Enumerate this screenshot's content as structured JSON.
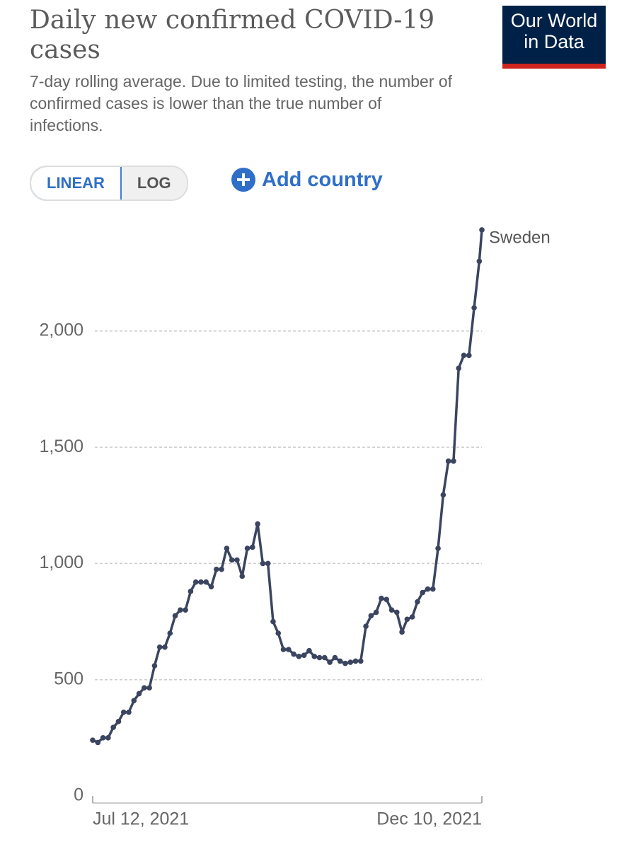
{
  "header": {
    "title": "Daily new confirmed COVID-19 cases",
    "subtitle": "7-day rolling average. Due to limited testing, the number of confirmed cases is lower than the true number of infections.",
    "logo_lines": [
      "Our World",
      "in Data"
    ]
  },
  "controls": {
    "linear": "LINEAR",
    "log": "LOG",
    "add_country": "Add country"
  },
  "chart_data": {
    "type": "line",
    "x": [
      "2021-07-12",
      "2021-07-14",
      "2021-07-16",
      "2021-07-18",
      "2021-07-20",
      "2021-07-22",
      "2021-07-24",
      "2021-07-26",
      "2021-07-28",
      "2021-07-30",
      "2021-08-01",
      "2021-08-03",
      "2021-08-05",
      "2021-08-07",
      "2021-08-09",
      "2021-08-11",
      "2021-08-13",
      "2021-08-15",
      "2021-08-17",
      "2021-08-19",
      "2021-08-21",
      "2021-08-23",
      "2021-08-25",
      "2021-08-27",
      "2021-08-29",
      "2021-08-31",
      "2021-09-02",
      "2021-09-04",
      "2021-09-06",
      "2021-09-08",
      "2021-09-10",
      "2021-09-12",
      "2021-09-14",
      "2021-09-16",
      "2021-09-18",
      "2021-09-20",
      "2021-09-22",
      "2021-09-24",
      "2021-09-26",
      "2021-09-28",
      "2021-09-30",
      "2021-10-02",
      "2021-10-04",
      "2021-10-06",
      "2021-10-08",
      "2021-10-10",
      "2021-10-12",
      "2021-10-14",
      "2021-10-16",
      "2021-10-18",
      "2021-10-20",
      "2021-10-22",
      "2021-10-24",
      "2021-10-26",
      "2021-10-28",
      "2021-10-30",
      "2021-11-01",
      "2021-11-03",
      "2021-11-05",
      "2021-11-07",
      "2021-11-09",
      "2021-11-11",
      "2021-11-13",
      "2021-11-15",
      "2021-11-17",
      "2021-11-19",
      "2021-11-21",
      "2021-11-23",
      "2021-11-25",
      "2021-11-27",
      "2021-11-29",
      "2021-12-01",
      "2021-12-03",
      "2021-12-05",
      "2021-12-07",
      "2021-12-09",
      "2021-12-10"
    ],
    "series": [
      {
        "name": "Sweden",
        "color": "#3b4560",
        "values": [
          240,
          230,
          250,
          250,
          295,
          320,
          360,
          360,
          410,
          440,
          465,
          465,
          560,
          640,
          640,
          700,
          775,
          800,
          800,
          880,
          920,
          920,
          920,
          900,
          975,
          975,
          1065,
          1015,
          1015,
          945,
          1065,
          1070,
          1170,
          1000,
          1000,
          750,
          700,
          630,
          630,
          610,
          600,
          605,
          625,
          600,
          595,
          595,
          575,
          595,
          580,
          570,
          575,
          580,
          580,
          730,
          775,
          790,
          850,
          845,
          800,
          790,
          705,
          760,
          770,
          835,
          875,
          890,
          890,
          1065,
          1295,
          1440,
          1440,
          1840,
          1895,
          1895,
          2100,
          2300,
          2435
        ]
      }
    ],
    "xlim": [
      "2021-07-12",
      "2021-12-10"
    ],
    "xticks": [
      {
        "value": "2021-07-12",
        "label": "Jul 12, 2021"
      },
      {
        "value": "2021-12-10",
        "label": "Dec 10, 2021"
      }
    ],
    "ylim": [
      0,
      2450
    ],
    "yticks": [
      0,
      500,
      {
        "value": 1000,
        "label": "1,000"
      },
      {
        "value": 1500,
        "label": "1,500"
      },
      {
        "value": 2000,
        "label": "2,000"
      }
    ],
    "grid": true
  }
}
